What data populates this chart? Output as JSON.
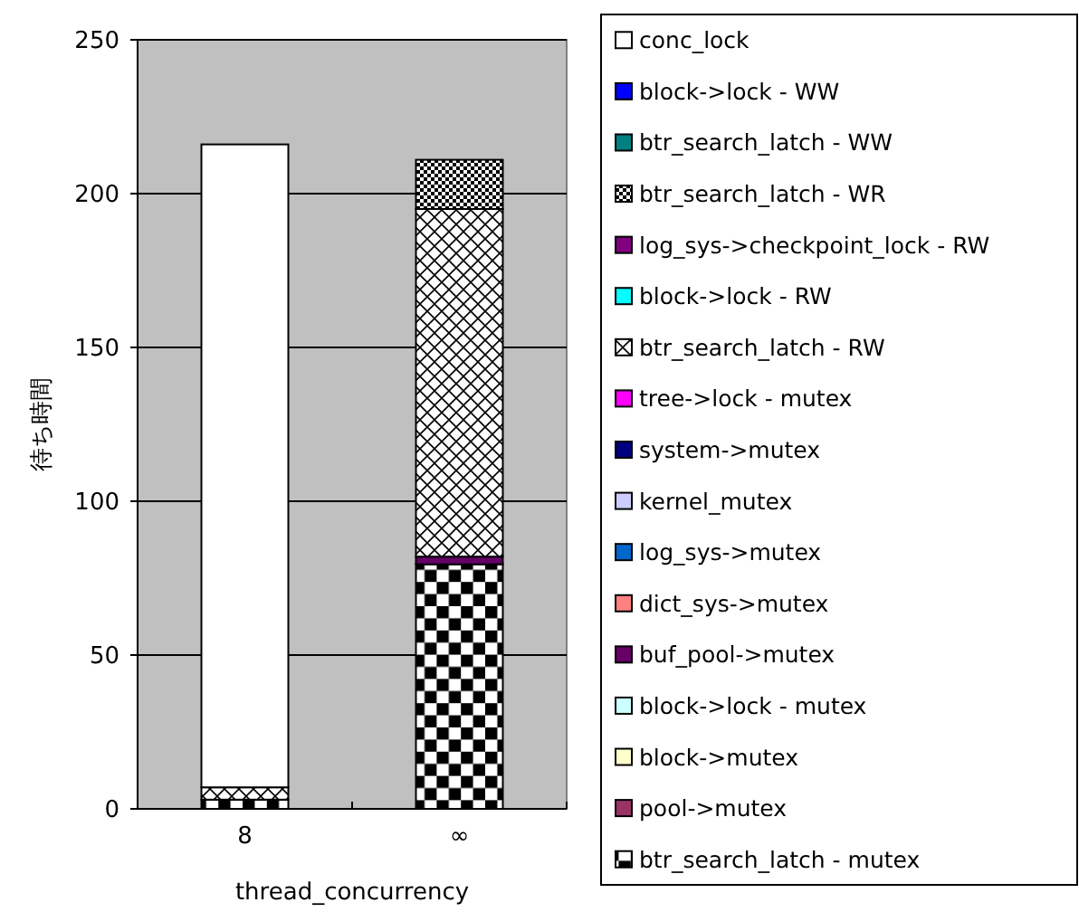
{
  "chart_data": {
    "type": "bar",
    "stacked": true,
    "categories": [
      "8",
      "∞"
    ],
    "xlabel": "thread_concurrency",
    "ylabel": "待ち時間",
    "ylim": [
      0,
      250
    ],
    "yticks": [
      0,
      50,
      100,
      150,
      200,
      250
    ],
    "grid": "y",
    "legend": "right",
    "series": [
      {
        "name": "btr_search_latch - mutex",
        "color": "#000000",
        "values": [
          3,
          79.5
        ]
      },
      {
        "name": "pool->mutex",
        "color": "#993366",
        "values": [
          0,
          0
        ]
      },
      {
        "name": "block->mutex",
        "color": "#ffffcc",
        "values": [
          0,
          0
        ]
      },
      {
        "name": "block->lock - mutex",
        "color": "#ccffff",
        "values": [
          0,
          0
        ]
      },
      {
        "name": "buf_pool->mutex",
        "color": "#660066",
        "values": [
          0,
          2.5
        ]
      },
      {
        "name": "dict_sys->mutex",
        "color": "#ff8080",
        "values": [
          0,
          0
        ]
      },
      {
        "name": "log_sys->mutex",
        "color": "#0066cc",
        "values": [
          0,
          0
        ]
      },
      {
        "name": "kernel_mutex",
        "color": "#ccccff",
        "values": [
          0,
          0
        ]
      },
      {
        "name": "system->mutex",
        "color": "#000080",
        "values": [
          0,
          0
        ]
      },
      {
        "name": "tree->lock - mutex",
        "color": "#ff00ff",
        "values": [
          0,
          0
        ]
      },
      {
        "name": "btr_search_latch - RW",
        "color": "#000000",
        "values": [
          4,
          113
        ]
      },
      {
        "name": "block->lock - RW",
        "color": "#00ffff",
        "values": [
          0,
          0
        ]
      },
      {
        "name": "log_sys->checkpoint_lock - RW",
        "color": "#800080",
        "values": [
          0,
          0
        ]
      },
      {
        "name": "btr_search_latch - WR",
        "color": "#000000",
        "values": [
          0,
          16
        ]
      },
      {
        "name": "btr_search_latch - WW",
        "color": "#008080",
        "values": [
          0,
          0
        ]
      },
      {
        "name": "block->lock - WW",
        "color": "#0000ff",
        "values": [
          0,
          0
        ]
      },
      {
        "name": "conc_lock",
        "color": "#ffffff",
        "values": [
          209,
          0
        ]
      }
    ]
  }
}
